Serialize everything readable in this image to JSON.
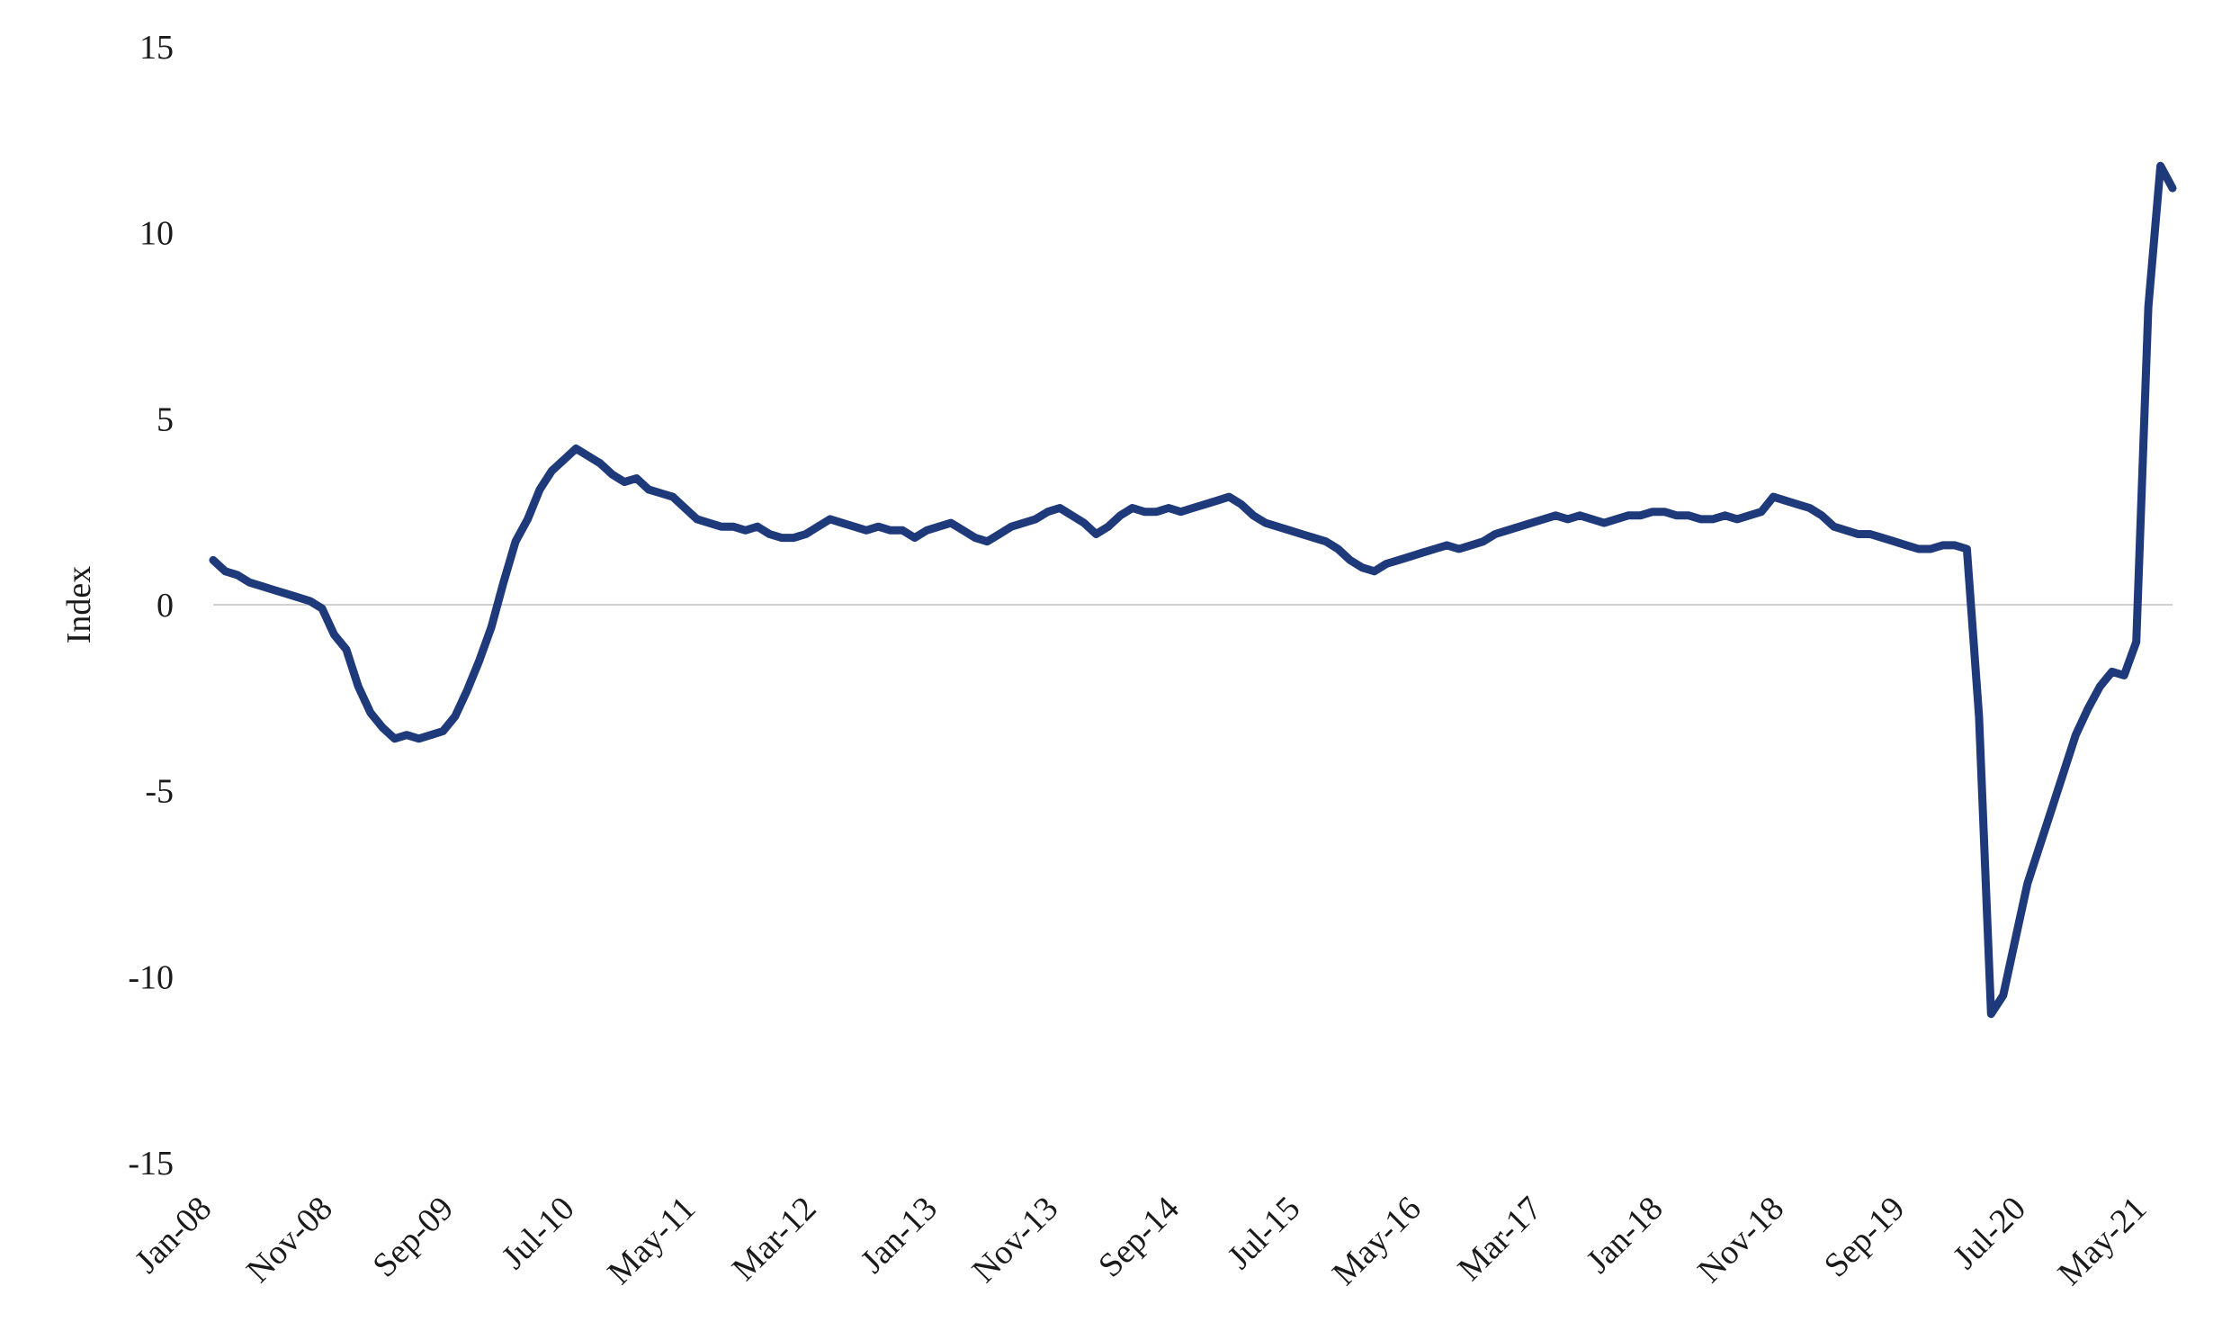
{
  "chart_data": {
    "type": "line",
    "title": "",
    "xlabel": "",
    "ylabel": "Index",
    "ylim": [
      -15,
      15
    ],
    "yticks": [
      15,
      10,
      5,
      0,
      -5,
      -10,
      -15
    ],
    "yticks_labels": [
      "15",
      "10",
      "5",
      "0",
      "-5",
      "-10",
      "-15"
    ],
    "xticks": [
      "Jan-08",
      "Nov-08",
      "Sep-09",
      "Jul-10",
      "May-11",
      "Mar-12",
      "Jan-13",
      "Nov-13",
      "Sep-14",
      "Jul-15",
      "May-16",
      "Mar-17",
      "Jan-18",
      "Nov-18",
      "Sep-19",
      "Jul-20",
      "May-21"
    ],
    "x_unit": "month",
    "grid": false,
    "zero_line": true,
    "line_color": "#1f3a7a",
    "series": [
      {
        "values_by_month": [
          [
            "2008-01",
            1.2
          ],
          [
            "2008-02",
            0.9
          ],
          [
            "2008-03",
            0.8
          ],
          [
            "2008-04",
            0.6
          ],
          [
            "2008-05",
            0.5
          ],
          [
            "2008-06",
            0.4
          ],
          [
            "2008-07",
            0.3
          ],
          [
            "2008-08",
            0.2
          ],
          [
            "2008-09",
            0.1
          ],
          [
            "2008-10",
            -0.1
          ],
          [
            "2008-11",
            -0.8
          ],
          [
            "2008-12",
            -1.2
          ],
          [
            "2009-01",
            -2.2
          ],
          [
            "2009-02",
            -2.9
          ],
          [
            "2009-03",
            -3.3
          ],
          [
            "2009-04",
            -3.6
          ],
          [
            "2009-05",
            -3.5
          ],
          [
            "2009-06",
            -3.6
          ],
          [
            "2009-07",
            -3.5
          ],
          [
            "2009-08",
            -3.4
          ],
          [
            "2009-09",
            -3.0
          ],
          [
            "2009-10",
            -2.3
          ],
          [
            "2009-11",
            -1.5
          ],
          [
            "2009-12",
            -0.6
          ],
          [
            "2010-01",
            0.6
          ],
          [
            "2010-02",
            1.7
          ],
          [
            "2010-03",
            2.3
          ],
          [
            "2010-04",
            3.1
          ],
          [
            "2010-05",
            3.6
          ],
          [
            "2010-06",
            3.9
          ],
          [
            "2010-07",
            4.2
          ],
          [
            "2010-08",
            4.0
          ],
          [
            "2010-09",
            3.8
          ],
          [
            "2010-10",
            3.5
          ],
          [
            "2010-11",
            3.3
          ],
          [
            "2010-12",
            3.4
          ],
          [
            "2011-01",
            3.1
          ],
          [
            "2011-02",
            3.0
          ],
          [
            "2011-03",
            2.9
          ],
          [
            "2011-04",
            2.6
          ],
          [
            "2011-05",
            2.3
          ],
          [
            "2011-06",
            2.2
          ],
          [
            "2011-07",
            2.1
          ],
          [
            "2011-08",
            2.1
          ],
          [
            "2011-09",
            2.0
          ],
          [
            "2011-10",
            2.1
          ],
          [
            "2011-11",
            1.9
          ],
          [
            "2011-12",
            1.8
          ],
          [
            "2012-01",
            1.8
          ],
          [
            "2012-02",
            1.9
          ],
          [
            "2012-03",
            2.1
          ],
          [
            "2012-04",
            2.3
          ],
          [
            "2012-05",
            2.2
          ],
          [
            "2012-06",
            2.1
          ],
          [
            "2012-07",
            2.0
          ],
          [
            "2012-08",
            2.1
          ],
          [
            "2012-09",
            2.0
          ],
          [
            "2012-10",
            2.0
          ],
          [
            "2012-11",
            1.8
          ],
          [
            "2012-12",
            2.0
          ],
          [
            "2013-01",
            2.1
          ],
          [
            "2013-02",
            2.2
          ],
          [
            "2013-03",
            2.0
          ],
          [
            "2013-04",
            1.8
          ],
          [
            "2013-05",
            1.7
          ],
          [
            "2013-06",
            1.9
          ],
          [
            "2013-07",
            2.1
          ],
          [
            "2013-08",
            2.2
          ],
          [
            "2013-09",
            2.3
          ],
          [
            "2013-10",
            2.5
          ],
          [
            "2013-11",
            2.6
          ],
          [
            "2013-12",
            2.4
          ],
          [
            "2014-01",
            2.2
          ],
          [
            "2014-02",
            1.9
          ],
          [
            "2014-03",
            2.1
          ],
          [
            "2014-04",
            2.4
          ],
          [
            "2014-05",
            2.6
          ],
          [
            "2014-06",
            2.5
          ],
          [
            "2014-07",
            2.5
          ],
          [
            "2014-08",
            2.6
          ],
          [
            "2014-09",
            2.5
          ],
          [
            "2014-10",
            2.6
          ],
          [
            "2014-11",
            2.7
          ],
          [
            "2014-12",
            2.8
          ],
          [
            "2015-01",
            2.9
          ],
          [
            "2015-02",
            2.7
          ],
          [
            "2015-03",
            2.4
          ],
          [
            "2015-04",
            2.2
          ],
          [
            "2015-05",
            2.1
          ],
          [
            "2015-06",
            2.0
          ],
          [
            "2015-07",
            1.9
          ],
          [
            "2015-08",
            1.8
          ],
          [
            "2015-09",
            1.7
          ],
          [
            "2015-10",
            1.5
          ],
          [
            "2015-11",
            1.2
          ],
          [
            "2015-12",
            1.0
          ],
          [
            "2016-01",
            0.9
          ],
          [
            "2016-02",
            1.1
          ],
          [
            "2016-03",
            1.2
          ],
          [
            "2016-04",
            1.3
          ],
          [
            "2016-05",
            1.4
          ],
          [
            "2016-06",
            1.5
          ],
          [
            "2016-07",
            1.6
          ],
          [
            "2016-08",
            1.5
          ],
          [
            "2016-09",
            1.6
          ],
          [
            "2016-10",
            1.7
          ],
          [
            "2016-11",
            1.9
          ],
          [
            "2016-12",
            2.0
          ],
          [
            "2017-01",
            2.1
          ],
          [
            "2017-02",
            2.2
          ],
          [
            "2017-03",
            2.3
          ],
          [
            "2017-04",
            2.4
          ],
          [
            "2017-05",
            2.3
          ],
          [
            "2017-06",
            2.4
          ],
          [
            "2017-07",
            2.3
          ],
          [
            "2017-08",
            2.2
          ],
          [
            "2017-09",
            2.3
          ],
          [
            "2017-10",
            2.4
          ],
          [
            "2017-11",
            2.4
          ],
          [
            "2017-12",
            2.5
          ],
          [
            "2018-01",
            2.5
          ],
          [
            "2018-02",
            2.4
          ],
          [
            "2018-03",
            2.4
          ],
          [
            "2018-04",
            2.3
          ],
          [
            "2018-05",
            2.3
          ],
          [
            "2018-06",
            2.4
          ],
          [
            "2018-07",
            2.3
          ],
          [
            "2018-08",
            2.4
          ],
          [
            "2018-09",
            2.5
          ],
          [
            "2018-10",
            2.9
          ],
          [
            "2018-11",
            2.8
          ],
          [
            "2018-12",
            2.7
          ],
          [
            "2019-01",
            2.6
          ],
          [
            "2019-02",
            2.4
          ],
          [
            "2019-03",
            2.1
          ],
          [
            "2019-04",
            2.0
          ],
          [
            "2019-05",
            1.9
          ],
          [
            "2019-06",
            1.9
          ],
          [
            "2019-07",
            1.8
          ],
          [
            "2019-08",
            1.7
          ],
          [
            "2019-09",
            1.6
          ],
          [
            "2019-10",
            1.5
          ],
          [
            "2019-11",
            1.5
          ],
          [
            "2019-12",
            1.6
          ],
          [
            "2020-01",
            1.6
          ],
          [
            "2020-02",
            1.5
          ],
          [
            "2020-03",
            -3.0
          ],
          [
            "2020-04",
            -11.0
          ],
          [
            "2020-05",
            -10.5
          ],
          [
            "2020-06",
            -9.0
          ],
          [
            "2020-07",
            -7.5
          ],
          [
            "2020-08",
            -6.5
          ],
          [
            "2020-09",
            -5.5
          ],
          [
            "2020-10",
            -4.5
          ],
          [
            "2020-11",
            -3.5
          ],
          [
            "2020-12",
            -2.8
          ],
          [
            "2021-01",
            -2.2
          ],
          [
            "2021-02",
            -1.8
          ],
          [
            "2021-03",
            -1.9
          ],
          [
            "2021-04",
            -1.0
          ],
          [
            "2021-05",
            8.0
          ],
          [
            "2021-06",
            11.8
          ],
          [
            "2021-07",
            11.2
          ]
        ]
      }
    ]
  }
}
